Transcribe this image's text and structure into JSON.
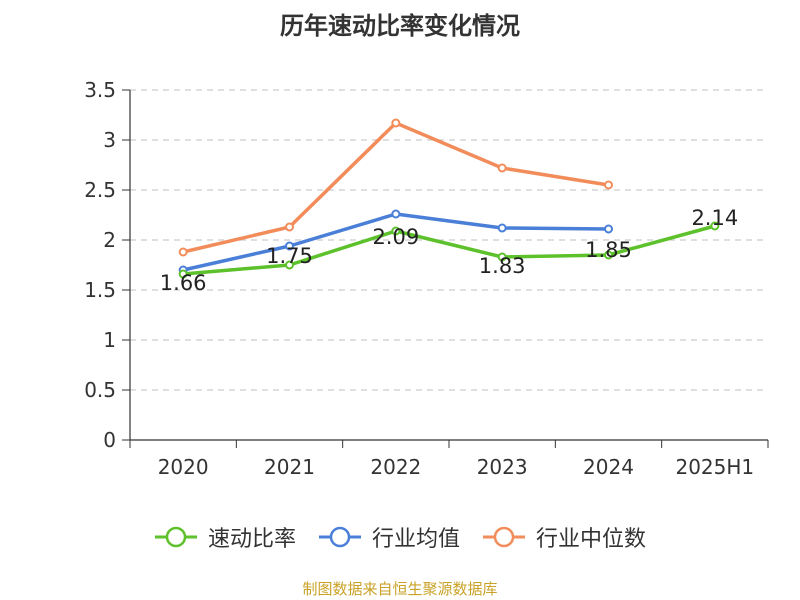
{
  "colors": {
    "速动比率": "#5cc12a",
    "行业均值": "#4a7fd8",
    "行业中位数": "#f28c5a",
    "source": "#c9a227"
  },
  "chart_data": {
    "type": "line",
    "title": "历年速动比率变化情况",
    "xlabel": "",
    "ylabel": "",
    "categories": [
      "2020",
      "2021",
      "2022",
      "2023",
      "2024",
      "2025H1"
    ],
    "ylim": [
      0,
      3.5
    ],
    "yticks": [
      "0",
      "0.5",
      "1",
      "1.5",
      "2",
      "2.5",
      "3",
      "3.5"
    ],
    "grid": true,
    "legend_position": "bottom",
    "series": [
      {
        "name": "速动比率",
        "values": [
          1.66,
          1.75,
          2.09,
          1.83,
          1.85,
          2.14
        ],
        "labels": [
          "1.66",
          "1.75",
          "2.09",
          "1.83",
          "1.85",
          "2.14"
        ]
      },
      {
        "name": "行业均值",
        "values": [
          1.7,
          1.94,
          2.26,
          2.12,
          2.11,
          null
        ]
      },
      {
        "name": "行业中位数",
        "values": [
          1.88,
          2.13,
          3.17,
          2.72,
          2.55,
          null
        ]
      }
    ]
  },
  "source": "制图数据来自恒生聚源数据库"
}
